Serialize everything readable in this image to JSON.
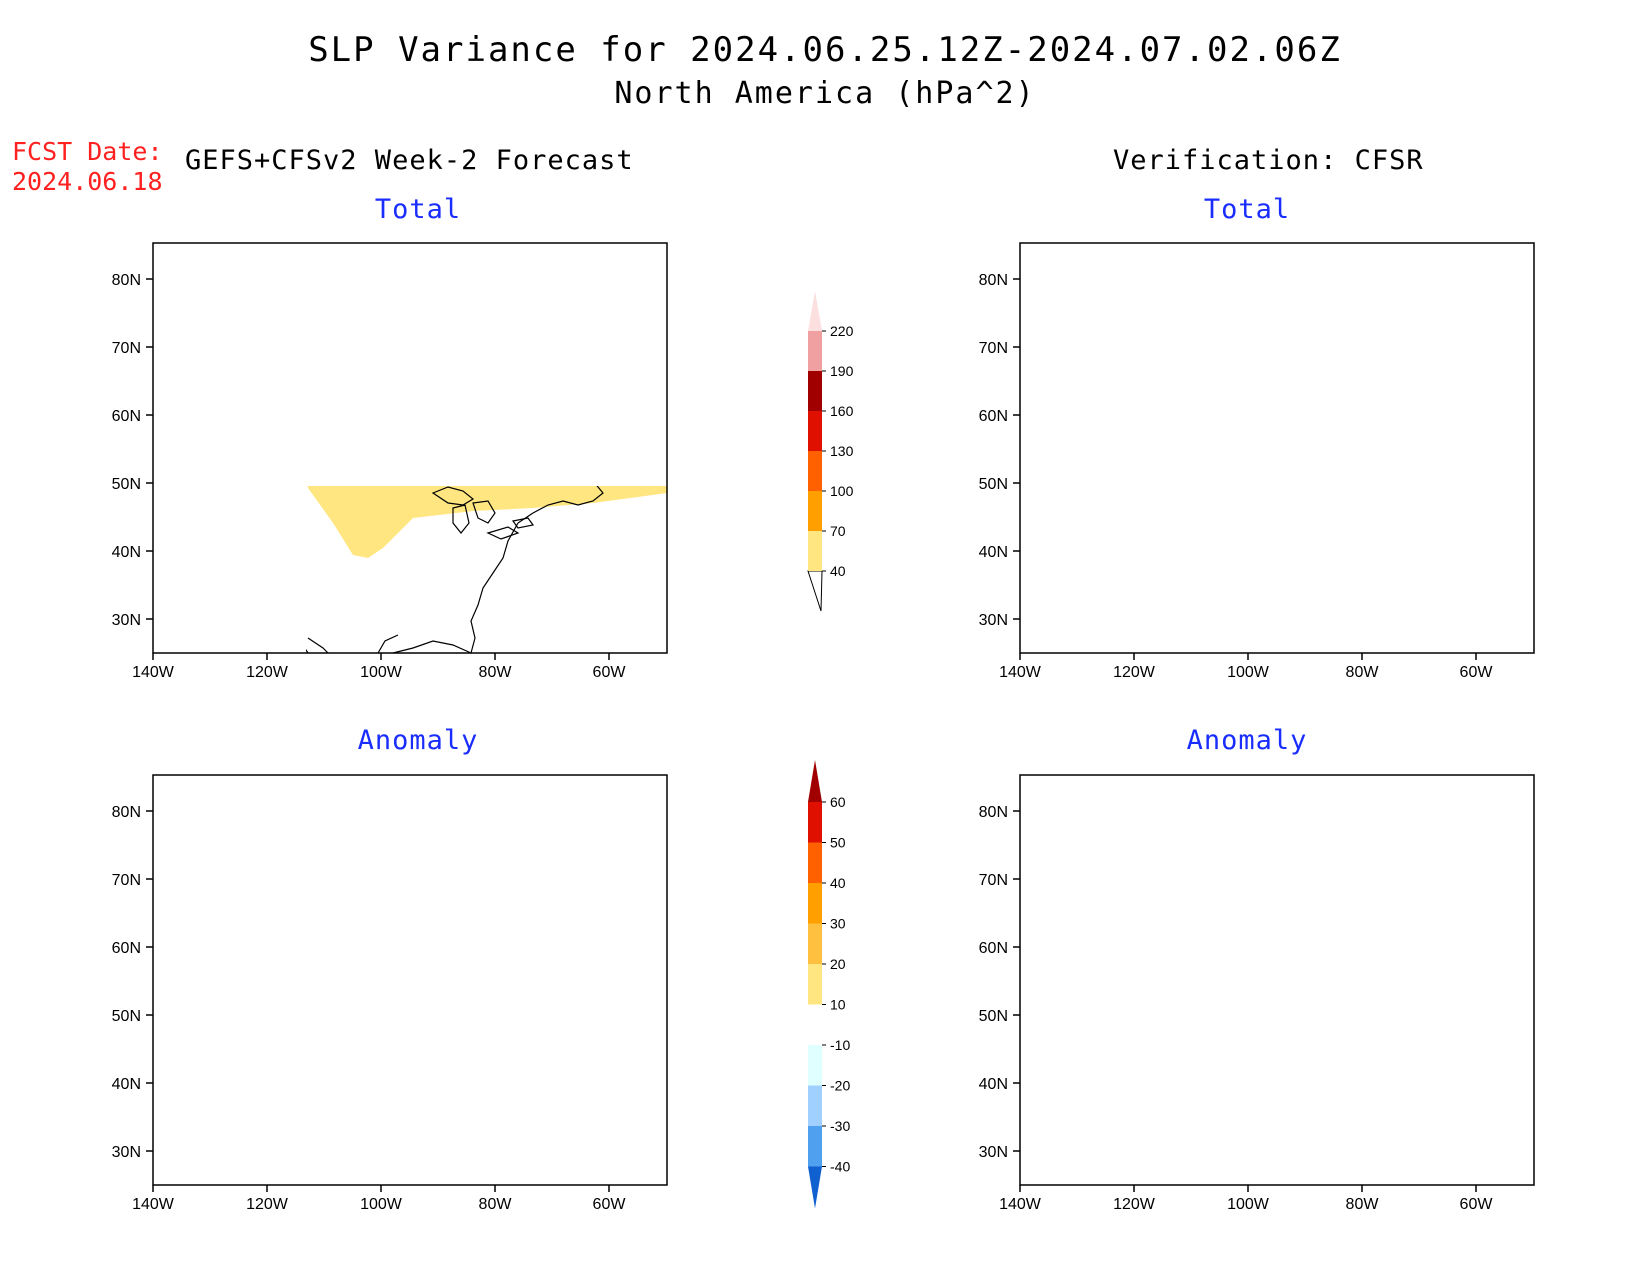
{
  "title": "SLP Variance for 2024.06.25.12Z-2024.07.02.06Z",
  "subtitle": "North America (hPa^2)",
  "fcst_date": {
    "label": "FCST Date:",
    "value": "2024.06.18"
  },
  "left_header": "GEFS+CFSv2 Week-2 Forecast",
  "right_header": "Verification: CFSR",
  "panels": [
    {
      "id": "fcst-total",
      "title": "Total"
    },
    {
      "id": "verif-total",
      "title": "Total"
    },
    {
      "id": "fcst-anomaly",
      "title": "Anomaly"
    },
    {
      "id": "verif-anomaly",
      "title": "Anomaly"
    }
  ],
  "map_axes": {
    "lon_ticks": [
      "140W",
      "120W",
      "100W",
      "80W",
      "60W"
    ],
    "lat_ticks": [
      "80N",
      "70N",
      "60N",
      "50N",
      "40N",
      "30N"
    ]
  },
  "total_colorbar": {
    "levels": [
      "40",
      "70",
      "100",
      "130",
      "160",
      "190",
      "220"
    ],
    "colors": [
      "#ffe680",
      "#ffa000",
      "#ff6000",
      "#e01000",
      "#a00000",
      "#f0a0a0",
      "#fce0e0"
    ]
  },
  "anomaly_colorbar": {
    "levels": [
      "60",
      "50",
      "40",
      "30",
      "20",
      "10",
      "-10",
      "-20",
      "-30",
      "-40"
    ],
    "colors_top_down": [
      "#a00000",
      "#e01000",
      "#ff6000",
      "#ffa000",
      "#ffc040",
      "#ffe680",
      "#fff8c0",
      "#ffffff",
      "#e0ffff",
      "#a0d0ff",
      "#50a0f0",
      "#2070e0",
      "#1060d0"
    ]
  }
}
